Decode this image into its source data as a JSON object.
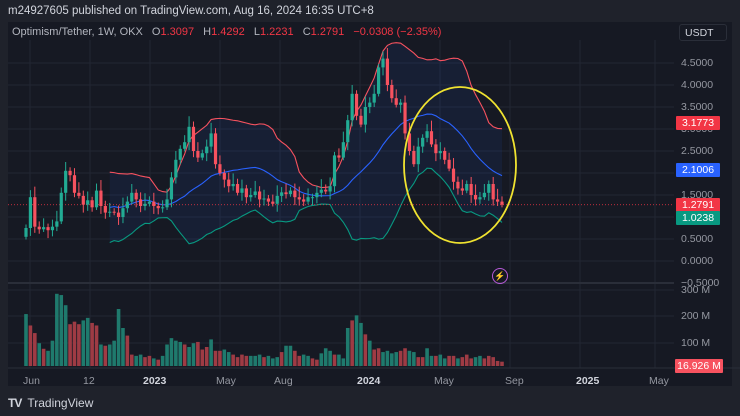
{
  "header": {
    "published": "m24927605 published on TradingView.com, Aug 16, 2024 16:35 UTC+8"
  },
  "legend": {
    "symbol": "Optimism/Tether, 1W, OKX",
    "o_label": "O",
    "o": "1.3097",
    "h_label": "H",
    "h": "1.4292",
    "l_label": "L",
    "l": "1.2231",
    "c_label": "C",
    "c": "1.2791",
    "change": "−0.0308 (−2.35%)"
  },
  "currency_button": "USDT",
  "price_axis": {
    "ticks": [
      "4.5000",
      "4.0000",
      "3.5000",
      "3.0000",
      "2.5000",
      "1.5000",
      "0.5000",
      "0.0000",
      "−0.5000"
    ],
    "tags": {
      "upper_band": {
        "value": "3.1773",
        "color": "#f23645"
      },
      "middle_band": {
        "value": "2.1006",
        "color": "#2962ff"
      },
      "last_price": {
        "value": "1.2791",
        "color": "#f23645"
      },
      "lower_band": {
        "value": "1.0238",
        "color": "#089981"
      }
    }
  },
  "volume_axis": {
    "ticks": [
      "300 M",
      "200 M",
      "100 M"
    ],
    "tag": {
      "value": "16.926 M",
      "color": "#f7525f"
    }
  },
  "time_axis": {
    "ticks": [
      {
        "label": "Jun",
        "bold": false
      },
      {
        "label": "12",
        "bold": false
      },
      {
        "label": "2023",
        "bold": true
      },
      {
        "label": "May",
        "bold": false
      },
      {
        "label": "Aug",
        "bold": false
      },
      {
        "label": "2024",
        "bold": true
      },
      {
        "label": "May",
        "bold": false
      },
      {
        "label": "Sep",
        "bold": false
      },
      {
        "label": "2025",
        "bold": true
      },
      {
        "label": "May",
        "bold": false
      }
    ]
  },
  "footer": {
    "brand": "TradingView",
    "logo": "TV"
  },
  "colors": {
    "up": "#22ab94",
    "down": "#f7525f",
    "upper": "#f7525f",
    "mid": "#2962ff",
    "lower": "#089981",
    "circle": "#f0e330"
  },
  "chart_data": {
    "type": "candlestick",
    "title": "Optimism/Tether, 1W, OKX",
    "ylabel": "USDT",
    "ylim": [
      -0.5,
      4.9
    ],
    "indicators": [
      "Bollinger Bands (upper, basis, lower)",
      "Volume"
    ],
    "x_ticks": [
      "Jun",
      "12",
      "2023",
      "May",
      "Aug",
      "2024",
      "May",
      "Sep",
      "2025",
      "May"
    ],
    "last": {
      "open": 1.3097,
      "high": 1.4292,
      "low": 1.2231,
      "close": 1.2791,
      "change": -0.0308,
      "change_pct": -2.35
    },
    "bands_last": {
      "upper": 3.1773,
      "basis": 2.1006,
      "lower": 1.0238
    },
    "closes": [
      0.75,
      1.45,
      0.78,
      0.72,
      0.77,
      0.7,
      0.78,
      0.9,
      1.55,
      2.05,
      1.95,
      1.55,
      1.48,
      1.28,
      1.38,
      1.22,
      1.6,
      1.25,
      1.1,
      1.12,
      1.1,
      1.0,
      1.2,
      1.35,
      1.55,
      1.4,
      1.25,
      1.3,
      1.35,
      1.25,
      1.2,
      1.22,
      1.4,
      1.9,
      2.3,
      2.55,
      2.7,
      3.05,
      2.5,
      2.35,
      2.45,
      2.6,
      2.9,
      2.2,
      2.0,
      1.85,
      1.7,
      1.75,
      1.55,
      1.65,
      1.45,
      1.5,
      1.58,
      1.4,
      1.42,
      1.35,
      1.3,
      1.48,
      1.56,
      1.52,
      1.6,
      1.45,
      1.4,
      1.35,
      1.45,
      1.45,
      1.55,
      1.62,
      1.58,
      1.7,
      2.4,
      2.35,
      2.7,
      3.2,
      3.8,
      3.3,
      3.1,
      3.5,
      3.6,
      3.8,
      4.4,
      4.6,
      4.0,
      3.7,
      3.55,
      3.6,
      2.9,
      2.5,
      2.2,
      2.6,
      2.8,
      2.95,
      2.65,
      2.45,
      2.5,
      2.3,
      2.1,
      1.8,
      1.65,
      1.6,
      1.75,
      1.5,
      1.4,
      1.45,
      1.55,
      1.75,
      1.4,
      1.35,
      1.28
    ],
    "volume_M": [
      205,
      160,
      130,
      90,
      68,
      60,
      100,
      285,
      280,
      240,
      165,
      175,
      165,
      180,
      190,
      170,
      160,
      85,
      80,
      85,
      100,
      225,
      150,
      120,
      45,
      40,
      45,
      35,
      40,
      30,
      25,
      40,
      85,
      110,
      100,
      95,
      85,
      75,
      90,
      95,
      65,
      75,
      105,
      60,
      60,
      65,
      55,
      45,
      35,
      45,
      40,
      40,
      40,
      45,
      35,
      40,
      30,
      35,
      55,
      80,
      80,
      60,
      40,
      45,
      40,
      30,
      25,
      50,
      70,
      60,
      45,
      45,
      30,
      150,
      180,
      200,
      170,
      125,
      100,
      65,
      70,
      55,
      60,
      50,
      55,
      60,
      70,
      60,
      55,
      35,
      35,
      70,
      40,
      40,
      45,
      30,
      40,
      40,
      30,
      35,
      45,
      30,
      35,
      40,
      30,
      40,
      35,
      20,
      17
    ],
    "volume_up": [
      1,
      0,
      0,
      1,
      0,
      1,
      1,
      1,
      1,
      1,
      0,
      0,
      0,
      1,
      1,
      0,
      0,
      1,
      0,
      1,
      1,
      1,
      1,
      0,
      0,
      1,
      1,
      0,
      0,
      1,
      0,
      1,
      1,
      1,
      1,
      1,
      0,
      1,
      1,
      0,
      0,
      0,
      1,
      0,
      0,
      1,
      1,
      0,
      0,
      0,
      0,
      1,
      1,
      1,
      0,
      1,
      1,
      1,
      0,
      1,
      1,
      0,
      0,
      1,
      1,
      0,
      0,
      1,
      1,
      1,
      0,
      1,
      1,
      1,
      0,
      1,
      1,
      0,
      1,
      0,
      0,
      1,
      1,
      1,
      1,
      0,
      0,
      1,
      1,
      0,
      0,
      1,
      1,
      0,
      1,
      1,
      0,
      0,
      1,
      0,
      0,
      0,
      1,
      1,
      0,
      0,
      0,
      0,
      0
    ],
    "annotation": "yellow ellipse highlighting 2024 downtrend (Apr–Aug)"
  }
}
